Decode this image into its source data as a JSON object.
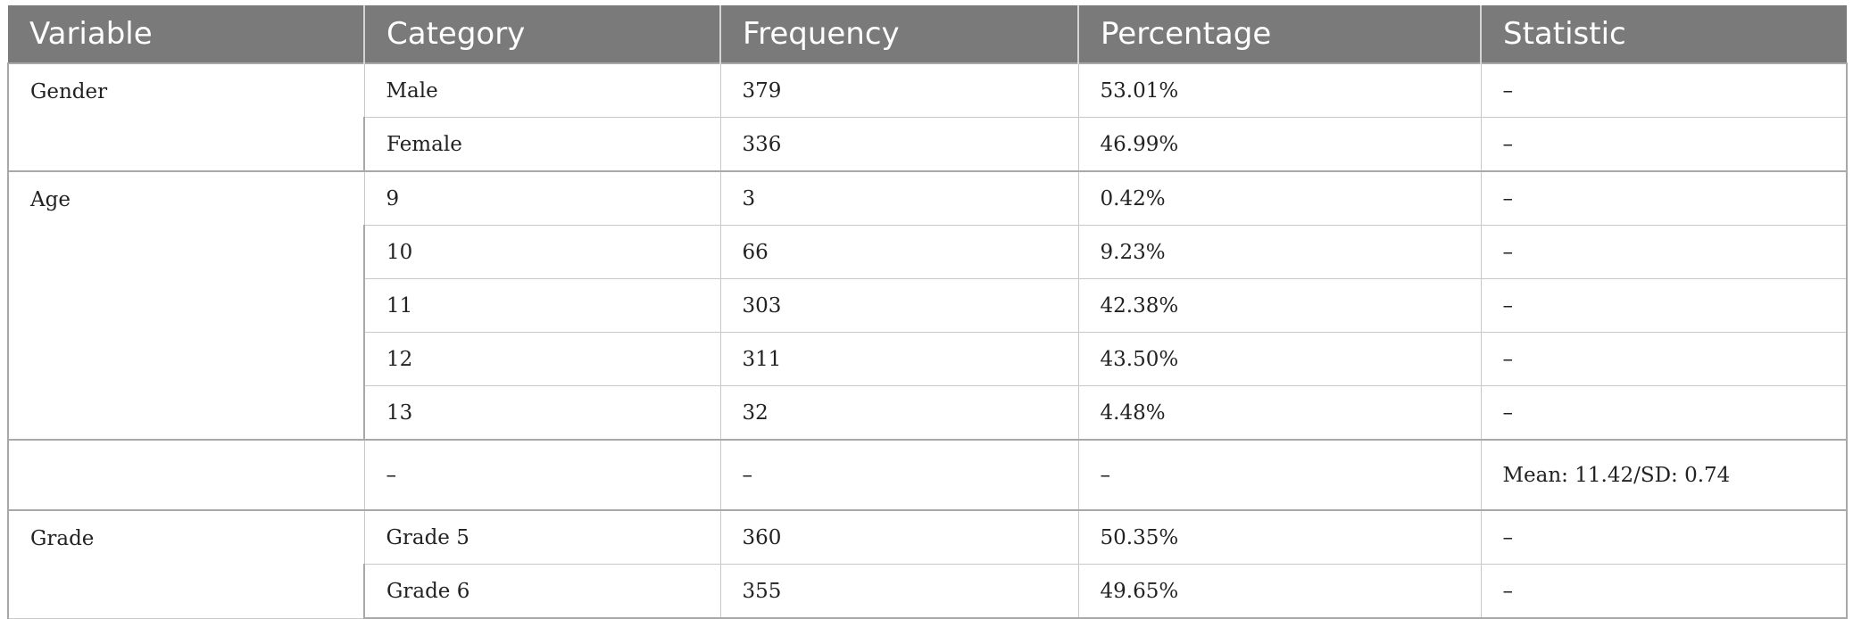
{
  "table": {
    "headers": [
      "Variable",
      "Category",
      "Frequency",
      "Percentage",
      "Statistic"
    ],
    "groups": [
      {
        "variable": "Gender",
        "rows": [
          [
            "Male",
            "379",
            "53.01%",
            "–"
          ],
          [
            "Female",
            "336",
            "46.99%",
            "–"
          ]
        ]
      },
      {
        "variable": "Age",
        "rows": [
          [
            "9",
            "3",
            "0.42%",
            "–"
          ],
          [
            "10",
            "66",
            "9.23%",
            "–"
          ],
          [
            "11",
            "303",
            "42.38%",
            "–"
          ],
          [
            "12",
            "311",
            "43.50%",
            "–"
          ],
          [
            "13",
            "32",
            "4.48%",
            "–"
          ]
        ]
      },
      {
        "variable": "",
        "rows": [
          [
            "–",
            "–",
            "–",
            "Mean: 11.42/SD: 0.74"
          ]
        ]
      },
      {
        "variable": "Grade",
        "rows": [
          [
            "Grade 5",
            "360",
            "50.35%",
            "–"
          ],
          [
            "Grade 6",
            "355",
            "49.65%",
            "–"
          ]
        ]
      }
    ]
  }
}
